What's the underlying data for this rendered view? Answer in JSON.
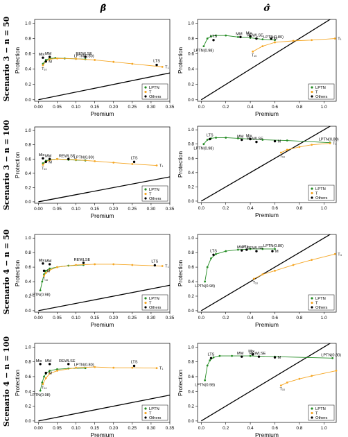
{
  "figure": {
    "column_headers": [
      "β̂",
      "σ̂"
    ],
    "row_labels": [
      "Scenario 3 − n = 50",
      "Scenario 3 − n = 100",
      "Scenario 4 − n = 50",
      "Scenario 4 − n = 100"
    ],
    "colors": {
      "LPTN": "#228B22",
      "T": "#F5A623",
      "Others": "#000000",
      "diagonal": "#000000"
    }
  },
  "chart_data": [
    {
      "type": "scatter",
      "panel": "row1-beta",
      "xlabel": "Premium",
      "ylabel": "Protection",
      "xlim": [
        -0.01,
        0.35
      ],
      "ylim": [
        -0.02,
        1.05
      ],
      "xticks": [
        0.0,
        0.05,
        0.1,
        0.15,
        0.2,
        0.25,
        0.3,
        0.35
      ],
      "yticks": [
        0.0,
        0.2,
        0.4,
        0.6,
        0.8,
        1.0
      ],
      "diagonal": [
        [
          0,
          0
        ],
        [
          0.35,
          0.35
        ]
      ],
      "series": [
        {
          "name": "LPTN",
          "x": [
            0.012,
            0.02,
            0.03,
            0.045,
            0.07,
            0.1,
            0.125
          ],
          "y": [
            0.47,
            0.52,
            0.54,
            0.545,
            0.54,
            0.535,
            0.53
          ],
          "point_labels": [
            "",
            "",
            "",
            "",
            "",
            "",
            "LPTN(0.80)"
          ]
        },
        {
          "name": "T",
          "x": [
            0.012,
            0.02,
            0.03,
            0.05,
            0.1,
            0.15,
            0.2,
            0.25,
            0.33
          ],
          "y": [
            0.45,
            0.5,
            0.53,
            0.54,
            0.535,
            0.52,
            0.495,
            0.47,
            0.43
          ],
          "point_labels": [
            "T₁₀",
            "",
            "",
            "",
            "",
            "",
            "",
            "",
            "T₁"
          ]
        },
        {
          "name": "Others",
          "x": [
            0.012,
            0.03,
            0.02,
            0.125,
            0.315
          ],
          "y": [
            0.55,
            0.56,
            0.5,
            0.56,
            0.455
          ],
          "point_labels": [
            "Mix",
            "MM",
            "M",
            "REWLSE",
            "LTS"
          ]
        }
      ]
    },
    {
      "type": "scatter",
      "panel": "row1-sigma",
      "xlabel": "Premium",
      "ylabel": "Protection",
      "xlim": [
        -0.03,
        1.1
      ],
      "ylim": [
        -0.02,
        1.05
      ],
      "xticks": [
        0.0,
        0.2,
        0.4,
        0.6,
        0.8,
        1.0
      ],
      "yticks": [
        0.0,
        0.2,
        0.4,
        0.6,
        0.8,
        1.0
      ],
      "diagonal": [
        [
          0,
          0
        ],
        [
          1.1,
          1.1
        ]
      ],
      "series": [
        {
          "name": "LPTN",
          "x": [
            0.02,
            0.05,
            0.08,
            0.12,
            0.2,
            0.3,
            0.4,
            0.5,
            0.6
          ],
          "y": [
            0.7,
            0.8,
            0.83,
            0.84,
            0.84,
            0.82,
            0.81,
            0.79,
            0.78
          ],
          "point_labels": [
            "LPTN(0.98)",
            "",
            "",
            "",
            "",
            "",
            "",
            "",
            "LPTN(0.80)"
          ]
        },
        {
          "name": "T",
          "x": [
            0.42,
            0.5,
            0.6,
            0.75,
            0.9,
            1.09
          ],
          "y": [
            0.63,
            0.7,
            0.75,
            0.77,
            0.78,
            0.8
          ],
          "point_labels": [
            "T₁₀",
            "",
            "",
            "",
            "",
            "T₁"
          ]
        },
        {
          "name": "Others",
          "x": [
            0.1,
            0.32,
            0.4,
            0.45,
            0.57
          ],
          "y": [
            0.78,
            0.82,
            0.83,
            0.8,
            0.8
          ],
          "point_labels": [
            "LTS",
            "MM",
            "Mix",
            "REWLSE",
            "M"
          ]
        }
      ]
    },
    {
      "type": "scatter",
      "panel": "row2-beta",
      "xlabel": "Premium",
      "ylabel": "Protection",
      "xlim": [
        -0.01,
        0.35
      ],
      "ylim": [
        -0.02,
        1.05
      ],
      "xticks": [
        0.0,
        0.05,
        0.1,
        0.15,
        0.2,
        0.25,
        0.3,
        0.35
      ],
      "yticks": [
        0.0,
        0.2,
        0.4,
        0.6,
        0.8,
        1.0
      ],
      "diagonal": [
        [
          0,
          0
        ],
        [
          0.35,
          0.35
        ]
      ],
      "series": [
        {
          "name": "LPTN",
          "x": [
            0.012,
            0.02,
            0.03,
            0.05,
            0.08,
            0.1,
            0.125
          ],
          "y": [
            0.54,
            0.575,
            0.59,
            0.6,
            0.59,
            0.585,
            0.58
          ],
          "point_labels": [
            "",
            "",
            "",
            "",
            "",
            "",
            "LPTN(0.80)"
          ]
        },
        {
          "name": "T",
          "x": [
            0.012,
            0.02,
            0.03,
            0.05,
            0.1,
            0.15,
            0.2,
            0.25,
            0.315
          ],
          "y": [
            0.52,
            0.56,
            0.585,
            0.6,
            0.59,
            0.57,
            0.55,
            0.53,
            0.51
          ],
          "point_labels": [
            "T₁₀",
            "",
            "",
            "",
            "",
            "",
            "",
            "",
            "T₁"
          ]
        },
        {
          "name": "Others",
          "x": [
            0.012,
            0.03,
            0.02,
            0.08,
            0.255
          ],
          "y": [
            0.61,
            0.6,
            0.56,
            0.6,
            0.56
          ],
          "point_labels": [
            "Mix",
            "MM",
            "M",
            "REWLSE",
            "LTS"
          ]
        }
      ]
    },
    {
      "type": "scatter",
      "panel": "row2-sigma",
      "xlabel": "Premium",
      "ylabel": "Protection",
      "xlim": [
        -0.03,
        1.1
      ],
      "ylim": [
        -0.02,
        1.05
      ],
      "xticks": [
        0.0,
        0.2,
        0.4,
        0.6,
        0.8,
        1.0
      ],
      "yticks": [
        0.0,
        0.2,
        0.4,
        0.6,
        0.8,
        1.0
      ],
      "diagonal": [
        [
          0,
          0
        ],
        [
          1.1,
          1.1
        ]
      ],
      "series": [
        {
          "name": "LPTN",
          "x": [
            0.02,
            0.05,
            0.08,
            0.12,
            0.2,
            0.3,
            0.5,
            0.7,
            1.05
          ],
          "y": [
            0.8,
            0.86,
            0.88,
            0.89,
            0.89,
            0.88,
            0.86,
            0.85,
            0.82
          ],
          "point_labels": [
            "LPTN(0.98)",
            "",
            "",
            "",
            "",
            "",
            "",
            "",
            "LPTN(0.80)"
          ]
        },
        {
          "name": "T",
          "x": [
            0.65,
            0.7,
            0.8,
            0.9,
            1.05
          ],
          "y": [
            0.68,
            0.72,
            0.76,
            0.79,
            0.81
          ],
          "point_labels": [
            "T₁₀",
            "",
            "",
            "",
            "T₁"
          ]
        },
        {
          "name": "Others",
          "x": [
            0.07,
            0.33,
            0.4,
            0.45,
            0.6
          ],
          "y": [
            0.87,
            0.86,
            0.87,
            0.83,
            0.84
          ],
          "point_labels": [
            "LTS",
            "MM",
            "Mix",
            "REWLSE",
            "M"
          ]
        }
      ]
    },
    {
      "type": "scatter",
      "panel": "row3-beta",
      "xlabel": "Premium",
      "ylabel": "Protection",
      "xlim": [
        -0.01,
        0.35
      ],
      "ylim": [
        -0.02,
        1.05
      ],
      "xticks": [
        0.0,
        0.05,
        0.1,
        0.15,
        0.2,
        0.25,
        0.3,
        0.35
      ],
      "yticks": [
        0.0,
        0.2,
        0.4,
        0.6,
        0.8,
        1.0
      ],
      "diagonal": [
        [
          0,
          0
        ],
        [
          0.35,
          0.35
        ]
      ],
      "series": [
        {
          "name": "LPTN",
          "x": [
            0.005,
            0.01,
            0.015,
            0.02,
            0.03,
            0.05,
            0.08,
            0.12
          ],
          "y": [
            0.28,
            0.4,
            0.5,
            0.55,
            0.58,
            0.6,
            0.62,
            0.63
          ],
          "point_labels": [
            "LPTN(0.98)",
            "",
            "",
            "",
            "",
            "",
            "",
            ""
          ]
        },
        {
          "name": "T",
          "x": [
            0.015,
            0.02,
            0.03,
            0.05,
            0.1,
            0.15,
            0.2,
            0.25,
            0.33
          ],
          "y": [
            0.48,
            0.52,
            0.56,
            0.6,
            0.63,
            0.64,
            0.64,
            0.63,
            0.615
          ],
          "point_labels": [
            "T₁₀",
            "",
            "",
            "",
            "",
            "",
            "",
            "",
            "T₁"
          ]
        },
        {
          "name": "Others",
          "x": [
            0.012,
            0.03,
            0.015,
            0.12,
            0.31
          ],
          "y": [
            0.65,
            0.64,
            0.55,
            0.66,
            0.625
          ],
          "point_labels": [
            "Mix",
            "MM",
            "M",
            "REWLSE",
            "LTS"
          ]
        }
      ]
    },
    {
      "type": "scatter",
      "panel": "row3-sigma",
      "xlabel": "Premium",
      "ylabel": "Protection",
      "xlim": [
        -0.03,
        1.1
      ],
      "ylim": [
        -0.02,
        1.05
      ],
      "xticks": [
        0.0,
        0.2,
        0.4,
        0.6,
        0.8,
        1.0
      ],
      "yticks": [
        0.0,
        0.2,
        0.4,
        0.6,
        0.8,
        1.0
      ],
      "diagonal": [
        [
          0,
          0
        ],
        [
          1.1,
          1.1
        ]
      ],
      "series": [
        {
          "name": "LPTN",
          "x": [
            0.03,
            0.05,
            0.08,
            0.12,
            0.2,
            0.3,
            0.4,
            0.5,
            0.6
          ],
          "y": [
            0.4,
            0.6,
            0.72,
            0.78,
            0.82,
            0.84,
            0.85,
            0.85,
            0.85
          ],
          "point_labels": [
            "LPTN(0.98)",
            "",
            "",
            "",
            "",
            "",
            "",
            "",
            "LPTN(0.80)"
          ]
        },
        {
          "name": "T",
          "x": [
            0.43,
            0.5,
            0.6,
            0.75,
            0.9,
            1.09
          ],
          "y": [
            0.44,
            0.5,
            0.55,
            0.63,
            0.7,
            0.78
          ],
          "point_labels": [
            "T₁₀",
            "",
            "",
            "",
            "",
            "T₄"
          ]
        },
        {
          "name": "Others",
          "x": [
            0.1,
            0.33,
            0.37,
            0.45,
            0.58
          ],
          "y": [
            0.77,
            0.83,
            0.84,
            0.82,
            0.82
          ],
          "point_labels": [
            "LTS",
            "MM",
            "Mix",
            "REWLSE",
            "M"
          ]
        }
      ]
    },
    {
      "type": "scatter",
      "panel": "row4-beta",
      "xlabel": "Premium",
      "ylabel": "Protection",
      "xlim": [
        -0.01,
        0.35
      ],
      "ylim": [
        -0.02,
        1.05
      ],
      "xticks": [
        0.0,
        0.05,
        0.1,
        0.15,
        0.2,
        0.25,
        0.3,
        0.35
      ],
      "yticks": [
        0.0,
        0.2,
        0.4,
        0.6,
        0.8,
        1.0
      ],
      "diagonal": [
        [
          0,
          0
        ],
        [
          0.35,
          0.35
        ]
      ],
      "series": [
        {
          "name": "LPTN",
          "x": [
            0.005,
            0.01,
            0.015,
            0.02,
            0.03,
            0.05,
            0.08,
            0.125
          ],
          "y": [
            0.41,
            0.52,
            0.6,
            0.64,
            0.68,
            0.7,
            0.71,
            0.715
          ],
          "point_labels": [
            "LPTN(0.98)",
            "",
            "",
            "",
            "",
            "",
            "",
            "LPTN(0.80)"
          ]
        },
        {
          "name": "T",
          "x": [
            0.012,
            0.02,
            0.03,
            0.05,
            0.1,
            0.15,
            0.2,
            0.25,
            0.315
          ],
          "y": [
            0.5,
            0.58,
            0.64,
            0.68,
            0.72,
            0.73,
            0.72,
            0.72,
            0.715
          ],
          "point_labels": [
            "T₁₀",
            "",
            "",
            "",
            "",
            "",
            "",
            "",
            "T₁"
          ]
        },
        {
          "name": "Others",
          "x": [
            0.005,
            0.03,
            0.02,
            0.08,
            0.255
          ],
          "y": [
            0.77,
            0.77,
            0.65,
            0.77,
            0.745
          ],
          "point_labels": [
            "Mix",
            "MM",
            "M",
            "REWLSE",
            "LTS"
          ]
        }
      ]
    },
    {
      "type": "scatter",
      "panel": "row4-sigma",
      "xlabel": "Premium",
      "ylabel": "Protection",
      "xlim": [
        -0.03,
        1.1
      ],
      "ylim": [
        -0.02,
        1.05
      ],
      "xticks": [
        0.0,
        0.2,
        0.4,
        0.6,
        0.8,
        1.0
      ],
      "yticks": [
        0.0,
        0.2,
        0.4,
        0.6,
        0.8,
        1.0
      ],
      "diagonal": [
        [
          0,
          0
        ],
        [
          1.1,
          1.1
        ]
      ],
      "series": [
        {
          "name": "LPTN",
          "x": [
            0.03,
            0.05,
            0.07,
            0.1,
            0.15,
            0.25,
            0.4,
            0.6,
            1.07
          ],
          "y": [
            0.55,
            0.75,
            0.82,
            0.86,
            0.88,
            0.88,
            0.88,
            0.87,
            0.85
          ],
          "point_labels": [
            "LPTN(0.98)",
            "",
            "",
            "",
            "",
            "",
            "",
            "",
            "LPTN(0.80)"
          ]
        },
        {
          "name": "T",
          "x": [
            0.65,
            0.7,
            0.8,
            0.9,
            1.1
          ],
          "y": [
            0.48,
            0.52,
            0.57,
            0.61,
            0.68
          ],
          "point_labels": [
            "T₁₀",
            "",
            "",
            "",
            ""
          ]
        },
        {
          "name": "Others",
          "x": [
            0.08,
            0.33,
            0.42,
            0.47,
            0.6
          ],
          "y": [
            0.85,
            0.87,
            0.9,
            0.87,
            0.86
          ],
          "point_labels": [
            "LTS",
            "MM",
            "Mix",
            "REWLSE",
            "M"
          ]
        }
      ]
    }
  ]
}
